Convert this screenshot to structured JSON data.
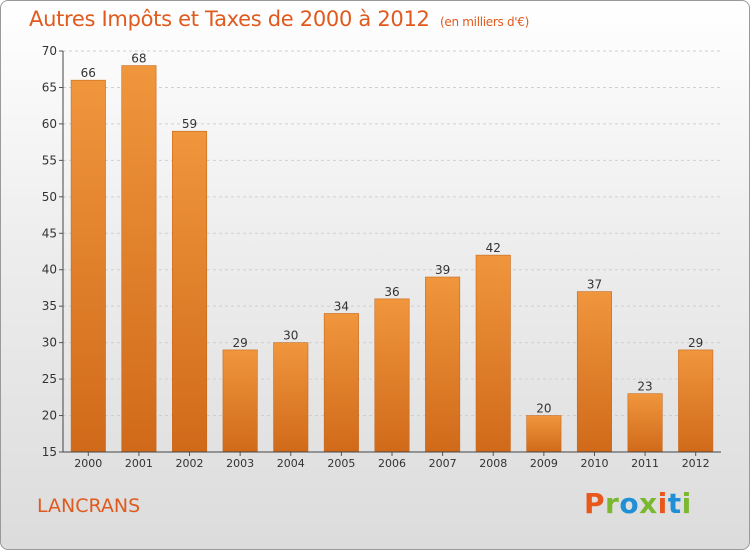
{
  "title": "Autres Impôts et Taxes de 2000 à 2012",
  "subtitle": "(en milliers d'€)",
  "commune": "LANCRANS",
  "logo": {
    "text": "Proxiti",
    "letters": [
      "P",
      "r",
      "o",
      "x",
      "i",
      "t",
      "i"
    ],
    "colors": [
      "#e8581c",
      "#7cb82f",
      "#1f8fd6",
      "#7cb82f",
      "#e8581c",
      "#1f8fd6",
      "#7cb82f"
    ]
  },
  "chart_data": {
    "type": "bar",
    "categories": [
      "2000",
      "2001",
      "2002",
      "2003",
      "2004",
      "2005",
      "2006",
      "2007",
      "2008",
      "2009",
      "2010",
      "2011",
      "2012"
    ],
    "values": [
      66,
      68,
      59,
      29,
      30,
      34,
      36,
      39,
      42,
      20,
      37,
      23,
      29
    ],
    "value_labels": [
      "66",
      "68",
      "59",
      "29",
      "30",
      "34",
      "36",
      "39",
      "42",
      "20",
      "37",
      "23",
      "29"
    ],
    "ylim": [
      15,
      70
    ],
    "yticks": [
      "15",
      "20",
      "25",
      "30",
      "35",
      "40",
      "45",
      "50",
      "55",
      "60",
      "65",
      "70"
    ],
    "grid": true,
    "bar_color": "#f0963d",
    "bar_color_dark": "#d06a1a"
  }
}
